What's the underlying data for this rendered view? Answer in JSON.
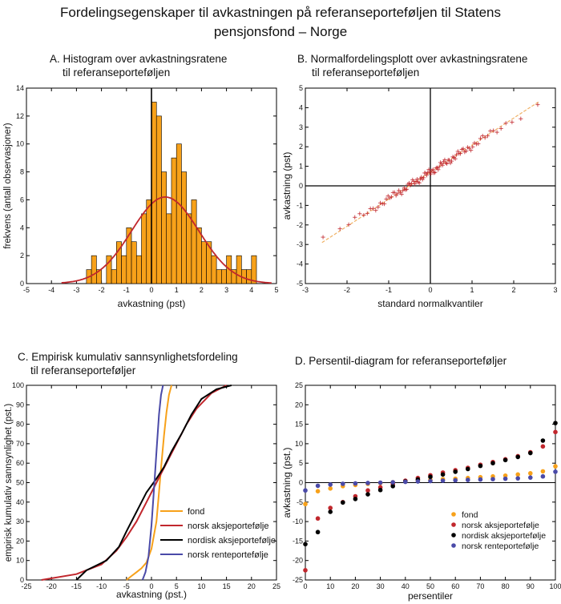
{
  "title_lines": [
    "Fordelingsegenskaper til avkastningen på referanseporteføljen til Statens",
    "pensjonsfond – Norge"
  ],
  "colors": {
    "orange": "#f7a11a",
    "red": "#c1272d",
    "black": "#000000",
    "blue": "#4a4aa8",
    "tan": "#f0b266"
  },
  "chart_data": [
    {
      "id": "A",
      "type": "bar",
      "title_lines": [
        "A. Histogram over avkastningsratene",
        "til referanseporteføljen"
      ],
      "xlabel": "avkastning (pst)",
      "ylabel": "frekvens (antall observasjoner)",
      "xlim": [
        -5,
        5
      ],
      "ylim": [
        0,
        14
      ],
      "xticks": [
        -5,
        -4,
        -3,
        -2,
        -1,
        0,
        1,
        2,
        3,
        4,
        5
      ],
      "yticks": [
        0,
        2,
        4,
        6,
        8,
        10,
        12,
        14
      ],
      "bin_width": 0.2,
      "bin_starts": [
        -2.6,
        -2.4,
        -2.2,
        -2.0,
        -1.8,
        -1.6,
        -1.4,
        -1.2,
        -1.0,
        -0.8,
        -0.6,
        -0.4,
        -0.2,
        0.0,
        0.2,
        0.4,
        0.6,
        0.8,
        1.0,
        1.2,
        1.4,
        1.6,
        1.8,
        2.0,
        2.2,
        2.4,
        2.6,
        2.8,
        3.0,
        3.2,
        3.4,
        3.6,
        3.8,
        4.0
      ],
      "values": [
        1,
        2,
        1,
        0,
        2,
        1,
        3,
        2,
        4,
        3,
        2,
        5,
        6,
        13,
        12,
        8,
        5,
        9,
        10,
        8,
        5,
        6,
        4,
        3,
        3,
        2,
        1,
        1,
        2,
        1,
        2,
        1,
        1,
        2
      ],
      "normal_fit": {
        "mean": 0.55,
        "sd": 1.35,
        "peak": 6.2
      },
      "grid": false
    },
    {
      "id": "B",
      "type": "scatter",
      "title_lines": [
        "B. Normalfordelingsplott over avkastningsratene",
        "til referanseporteføljen"
      ],
      "xlabel": "standard normalkvantiler",
      "ylabel": "avkastning (pst)",
      "xlim": [
        -3,
        3
      ],
      "ylim": [
        -5,
        5
      ],
      "xticks": [
        -3,
        -2,
        -1,
        0,
        1,
        2,
        3
      ],
      "yticks": [
        -5,
        -4,
        -3,
        -2,
        -1,
        0,
        1,
        2,
        3,
        4,
        5
      ],
      "reference_line": {
        "x": [
          -2.6,
          2.6
        ],
        "y": [
          -2.9,
          4.3
        ]
      },
      "points": {
        "n": 100,
        "mean": 0.7,
        "sd": 1.35
      },
      "grid": false
    },
    {
      "id": "C",
      "type": "line",
      "title_lines": [
        "C. Empirisk kumulativ sannsynlighetsfordeling",
        "til referanseporteføljer"
      ],
      "xlabel": "avkastning (pst.)",
      "ylabel": "empirisk kumulativ sannsynlighet (pst.)",
      "xlim": [
        -25,
        25
      ],
      "ylim": [
        0,
        100
      ],
      "xticks": [
        -25,
        -20,
        -15,
        -10,
        -5,
        0,
        5,
        10,
        15,
        20,
        25
      ],
      "yticks": [
        0,
        10,
        20,
        30,
        40,
        50,
        60,
        70,
        80,
        90,
        100
      ],
      "legend_position": "bottom-right",
      "series": [
        {
          "name": "fond",
          "color": "#f7a11a",
          "x": [
            -5,
            -4,
            -3,
            -2,
            -1,
            0,
            1,
            1.5,
            2,
            2.5,
            3,
            3.5,
            4
          ],
          "y": [
            0,
            2,
            4,
            6,
            9,
            16,
            30,
            45,
            60,
            74,
            86,
            95,
            100
          ]
        },
        {
          "name": "norsk aksjeportefølje",
          "color": "#c1272d",
          "x": [
            -22,
            -15,
            -10,
            -7,
            -5,
            -3,
            -1,
            1,
            3,
            5,
            7,
            9,
            12,
            15
          ],
          "y": [
            0,
            3,
            8,
            15,
            22,
            30,
            40,
            50,
            60,
            70,
            80,
            88,
            96,
            100
          ]
        },
        {
          "name": "nordisk aksjeportefølje",
          "color": "#000000",
          "x": [
            -15,
            -13,
            -9,
            -6.5,
            -5,
            -3,
            -1,
            1,
            2.5,
            4,
            6,
            8,
            10,
            13,
            16
          ],
          "y": [
            0,
            5,
            10,
            17,
            25,
            35,
            45,
            52,
            58,
            66,
            75,
            85,
            93,
            98,
            100
          ]
        },
        {
          "name": "norsk renteportefølje",
          "color": "#4a4aa8",
          "x": [
            -1.8,
            -1.2,
            -0.6,
            0,
            0.6,
            1.1,
            1.5,
            1.9,
            2.3
          ],
          "y": [
            0,
            4,
            12,
            28,
            50,
            70,
            85,
            95,
            100
          ]
        }
      ],
      "grid": false
    },
    {
      "id": "D",
      "type": "scatter",
      "title_lines": [
        "D.  Persentil-diagram for referanseporteføljer"
      ],
      "xlabel": "persentiler",
      "ylabel": "avkastning (pst.)",
      "xlim": [
        0,
        100
      ],
      "ylim": [
        -25,
        25
      ],
      "xticks": [
        0,
        10,
        20,
        30,
        40,
        50,
        60,
        70,
        80,
        90,
        100
      ],
      "yticks": [
        -25,
        -20,
        -15,
        -10,
        -5,
        0,
        5,
        10,
        15,
        20,
        25
      ],
      "legend_position": "bottom-right",
      "x": [
        0,
        5,
        10,
        15,
        20,
        25,
        30,
        35,
        40,
        45,
        50,
        55,
        60,
        65,
        70,
        75,
        80,
        85,
        90,
        95,
        100
      ],
      "series": [
        {
          "name": "fond",
          "color": "#f7a11a",
          "values": [
            -5.5,
            -2.2,
            -1.5,
            -0.9,
            -0.6,
            -0.3,
            -0.1,
            0.1,
            0.3,
            0.5,
            0.7,
            0.9,
            1.0,
            1.2,
            1.4,
            1.6,
            1.8,
            2.1,
            2.4,
            2.9,
            4.2
          ]
        },
        {
          "name": "norsk aksjeportefølje",
          "color": "#c1272d",
          "values": [
            -22.5,
            -9.2,
            -6.5,
            -5.0,
            -3.5,
            -2.0,
            -1.2,
            -0.3,
            0.5,
            1.2,
            1.9,
            2.6,
            3.2,
            3.8,
            4.6,
            5.3,
            6.0,
            6.8,
            7.8,
            9.3,
            13.0
          ]
        },
        {
          "name": "nordisk aksjeportefølje",
          "color": "#000000",
          "values": [
            -15.8,
            -12.7,
            -7.5,
            -5.1,
            -4.2,
            -3.0,
            -1.9,
            -0.9,
            0.3,
            0.8,
            1.5,
            2.1,
            2.8,
            3.5,
            4.3,
            5.0,
            5.8,
            6.6,
            7.6,
            10.8,
            15.3
          ]
        },
        {
          "name": "norsk renteportefølje",
          "color": "#4a4aa8",
          "values": [
            -2.0,
            -0.8,
            -0.5,
            -0.3,
            -0.2,
            -0.1,
            0.0,
            0.1,
            0.2,
            0.3,
            0.4,
            0.5,
            0.6,
            0.7,
            0.8,
            0.9,
            1.0,
            1.1,
            1.3,
            1.6,
            2.8
          ]
        }
      ],
      "grid": false
    }
  ]
}
